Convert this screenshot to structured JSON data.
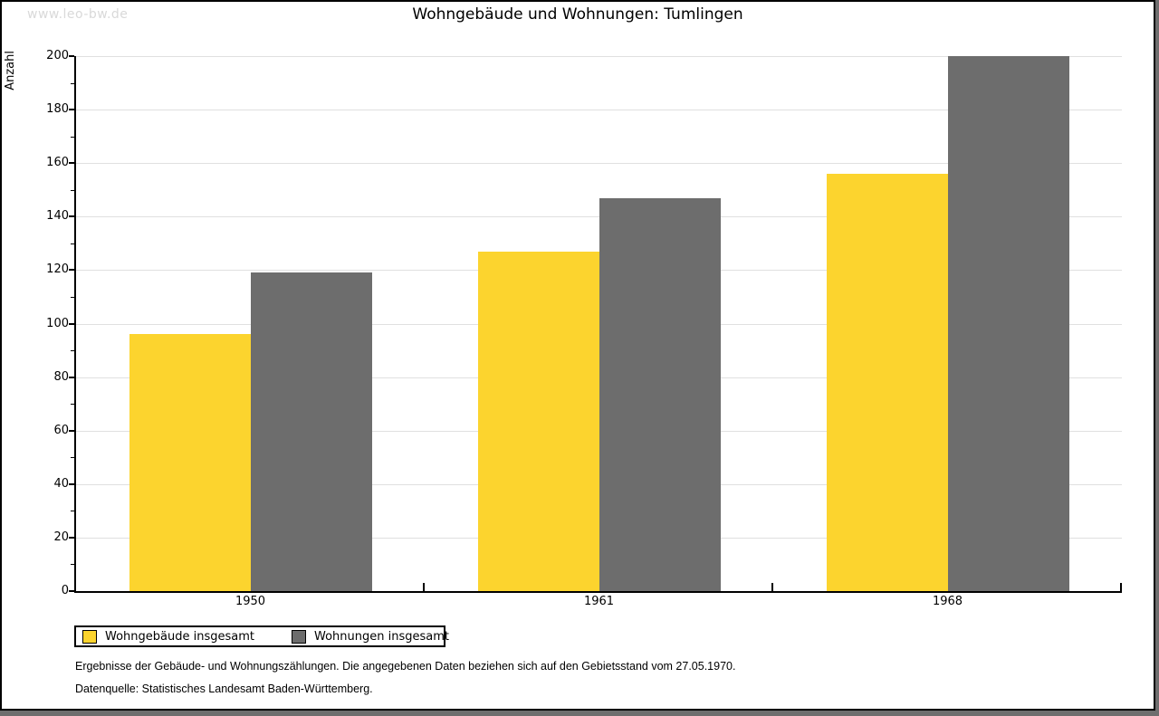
{
  "watermark": "www.leo-bw.de",
  "title": "Wohngebäude und Wohnungen: Tumlingen",
  "chart_data": {
    "type": "bar",
    "title": "Wohngebäude und Wohnungen: Tumlingen",
    "categories": [
      "1950",
      "1961",
      "1968"
    ],
    "series": [
      {
        "name": "Wohngebäude insgesamt",
        "color": "#fcd42e",
        "values": [
          96,
          127,
          156
        ]
      },
      {
        "name": "Wohnungen insgesamt",
        "color": "#6d6d6d",
        "values": [
          119,
          147,
          200
        ]
      }
    ],
    "xlabel": "",
    "ylabel": "Anzahl",
    "ylim": [
      0,
      200
    ],
    "ytick_step": 20,
    "minor_tick_step": 10,
    "grid": true,
    "legend_position": "bottom-left"
  },
  "legend": {
    "items": [
      {
        "label": "Wohngebäude insgesamt",
        "color": "#fcd42e"
      },
      {
        "label": "Wohnungen insgesamt",
        "color": "#6d6d6d"
      }
    ]
  },
  "footer": {
    "line1": "Ergebnisse der Gebäude- und Wohnungszählungen. Die angegebenen Daten beziehen sich auf den Gebietsstand vom 27.05.1970.",
    "line2": "Datenquelle: Statistisches Landesamt Baden-Württemberg."
  },
  "colors": {
    "bar_yellow": "#fcd42e",
    "bar_gray": "#6d6d6d",
    "gridline": "#e0e0e0",
    "axis": "#000000",
    "watermark": "#d9d9d9",
    "page_shadow": "#6e6e6e"
  }
}
